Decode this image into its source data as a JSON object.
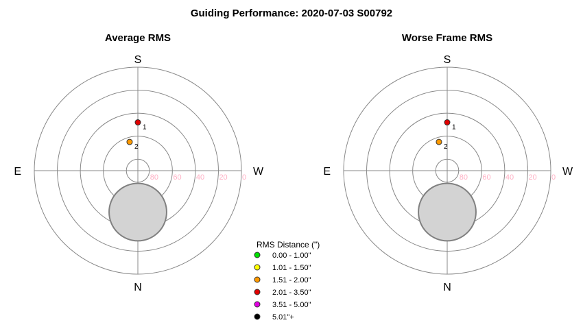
{
  "figure": {
    "title": "Guiding Performance: 2020-07-03 S00792"
  },
  "chart_data": [
    {
      "type": "scatter",
      "subtype": "polar-altaz",
      "title": "Average RMS",
      "directions": {
        "top": "S",
        "bottom": "N",
        "left": "E",
        "right": "W"
      },
      "radial_ticks": [
        "80",
        "60",
        "40",
        "20",
        "0"
      ],
      "altitude_rings": [
        80,
        60,
        40,
        20,
        0
      ],
      "grid": true,
      "obscured_zone": {
        "center_alt": 54,
        "radius_deg": 25
      },
      "points": [
        {
          "label": "1",
          "azimuth_deg": 180,
          "altitude_deg": 48,
          "category": "2.01 - 3.50\""
        },
        {
          "label": "2",
          "azimuth_deg": 164,
          "altitude_deg": 64,
          "category": "1.51 - 2.00\""
        }
      ]
    },
    {
      "type": "scatter",
      "subtype": "polar-altaz",
      "title": "Worse Frame RMS",
      "directions": {
        "top": "S",
        "bottom": "N",
        "left": "E",
        "right": "W"
      },
      "radial_ticks": [
        "80",
        "60",
        "40",
        "20",
        "0"
      ],
      "altitude_rings": [
        80,
        60,
        40,
        20,
        0
      ],
      "grid": true,
      "obscured_zone": {
        "center_alt": 54,
        "radius_deg": 25
      },
      "points": [
        {
          "label": "1",
          "azimuth_deg": 180,
          "altitude_deg": 48,
          "category": "2.01 - 3.50\""
        },
        {
          "label": "2",
          "azimuth_deg": 164,
          "altitude_deg": 64,
          "category": "1.51 - 2.00\""
        }
      ]
    }
  ],
  "legend": {
    "title": "RMS Distance (\")",
    "placement": "bottom-center",
    "items": [
      {
        "label": "0.00 - 1.00\"",
        "color": "#00e000"
      },
      {
        "label": "1.01 - 1.50\"",
        "color": "#ffff00"
      },
      {
        "label": "1.51 - 2.00\"",
        "color": "#ff9900"
      },
      {
        "label": "2.01 - 3.50\"",
        "color": "#e00000"
      },
      {
        "label": "3.51 - 5.00\"",
        "color": "#e000e0"
      },
      {
        "label": "5.01\"+",
        "color": "#000000"
      }
    ]
  }
}
